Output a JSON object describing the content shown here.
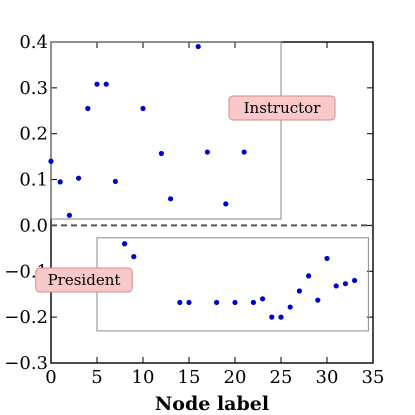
{
  "chart_data": {
    "type": "scatter",
    "xlabel": "Node label",
    "ylabel": "",
    "xlim": [
      0,
      35
    ],
    "ylim": [
      -0.3,
      0.4
    ],
    "xticks": [
      0,
      5,
      10,
      15,
      20,
      25,
      30,
      35
    ],
    "yticks": [
      -0.3,
      -0.2,
      -0.1,
      0.0,
      0.1,
      0.2,
      0.3,
      0.4
    ],
    "xtick_labels": [
      "0",
      "5",
      "10",
      "15",
      "20",
      "25",
      "30",
      "35"
    ],
    "ytick_labels": [
      "−0.3",
      "−0.2",
      "−0.1",
      "0.0",
      "0.1",
      "0.2",
      "0.3",
      "0.4"
    ],
    "reference_line": {
      "y": 0.0,
      "style": "dashed",
      "color": "#555555"
    },
    "marker_color": "#0000cc",
    "series": [
      {
        "points": [
          {
            "x": 0,
            "y": 0.14
          },
          {
            "x": 1,
            "y": 0.095
          },
          {
            "x": 2,
            "y": 0.022
          },
          {
            "x": 3,
            "y": 0.103
          },
          {
            "x": 4,
            "y": 0.255
          },
          {
            "x": 5,
            "y": 0.308
          },
          {
            "x": 6,
            "y": 0.308
          },
          {
            "x": 7,
            "y": 0.096
          },
          {
            "x": 8,
            "y": -0.04
          },
          {
            "x": 9,
            "y": -0.068
          },
          {
            "x": 10,
            "y": 0.255
          },
          {
            "x": 12,
            "y": 0.157
          },
          {
            "x": 13,
            "y": 0.058
          },
          {
            "x": 14,
            "y": -0.168
          },
          {
            "x": 15,
            "y": -0.168
          },
          {
            "x": 16,
            "y": 0.39
          },
          {
            "x": 17,
            "y": 0.16
          },
          {
            "x": 18,
            "y": -0.168
          },
          {
            "x": 19,
            "y": 0.047
          },
          {
            "x": 20,
            "y": -0.168
          },
          {
            "x": 21,
            "y": 0.16
          },
          {
            "x": 22,
            "y": -0.168
          },
          {
            "x": 23,
            "y": -0.16
          },
          {
            "x": 24,
            "y": -0.2
          },
          {
            "x": 25,
            "y": -0.2
          },
          {
            "x": 26,
            "y": -0.178
          },
          {
            "x": 27,
            "y": -0.143
          },
          {
            "x": 28,
            "y": -0.11
          },
          {
            "x": 29,
            "y": -0.163
          },
          {
            "x": 30,
            "y": -0.072
          },
          {
            "x": 31,
            "y": -0.132
          },
          {
            "x": 32,
            "y": -0.127
          },
          {
            "x": 33,
            "y": -0.12
          }
        ]
      }
    ],
    "groups": [
      {
        "label": "Instructor",
        "x_range": [
          0,
          25
        ],
        "y_range": [
          0.014,
          0.4
        ]
      },
      {
        "label": "President",
        "x_range": [
          5,
          34.5
        ],
        "y_range": [
          -0.23,
          -0.027
        ]
      }
    ]
  }
}
